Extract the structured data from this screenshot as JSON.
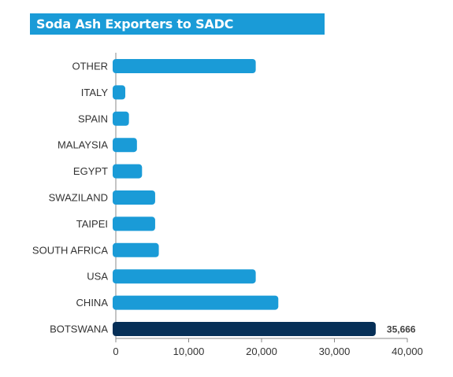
{
  "chart_data": {
    "type": "bar",
    "orientation": "horizontal",
    "title": "Soda Ash Exporters to SADC",
    "categories": [
      "OTHER",
      "ITALY",
      "SPAIN",
      "MALAYSIA",
      "EGYPT",
      "SWAZILAND",
      "TAIPEI",
      "SOUTH AFRICA",
      "USA",
      "CHINA",
      "BOTSWANA"
    ],
    "values": [
      19200,
      1300,
      1800,
      2900,
      3600,
      5400,
      5400,
      5900,
      19200,
      22300,
      35666
    ],
    "data_labels": [
      "",
      "",
      "",
      "",
      "",
      "",
      "",
      "",
      "",
      "",
      "35,666"
    ],
    "highlight_category": "BOTSWANA",
    "xlim": [
      0,
      40000
    ],
    "xticks": [
      0,
      10000,
      20000,
      30000,
      40000
    ],
    "xtick_labels": [
      "0",
      "10,000",
      "20,000",
      "30,000",
      "40,000"
    ],
    "grid": false,
    "colors": {
      "bar": "#1a9bd7",
      "highlight": "#062f57",
      "title_bg": "#1a9bd7"
    }
  }
}
